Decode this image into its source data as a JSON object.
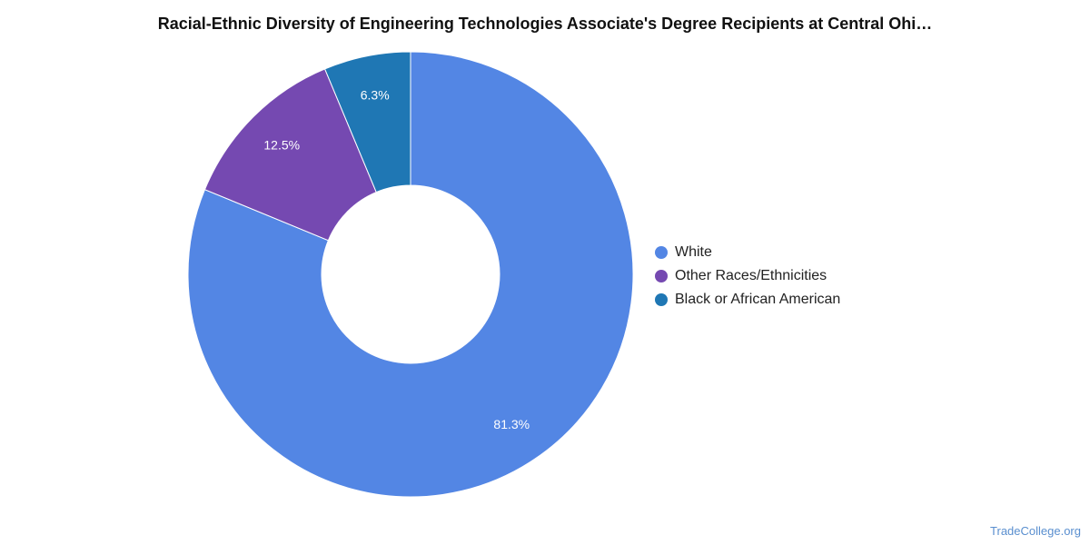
{
  "chart_data": {
    "type": "pie",
    "title": "Racial-Ethnic Diversity of Engineering Technologies Associate's Degree Recipients at Central Ohi…",
    "donut": true,
    "legend_position": "right",
    "slices": [
      {
        "name": "White",
        "value": 81.3,
        "label": "81.3%",
        "color": "#5386e4"
      },
      {
        "name": "Other Races/Ethnicities",
        "value": 12.5,
        "label": "12.5%",
        "color": "#7549b1"
      },
      {
        "name": "Black or African American",
        "value": 6.3,
        "label": "6.3%",
        "color": "#1f77b4"
      }
    ]
  },
  "watermark": "TradeCollege.org"
}
